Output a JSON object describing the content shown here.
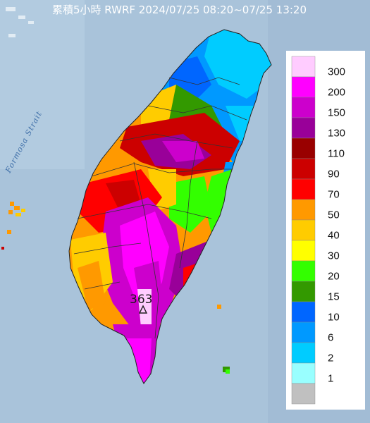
{
  "map": {
    "title": "累積5小時 RWRF 2024/07/25 08:20~07/25 13:20",
    "strait_label": "Formosa Strait",
    "peak_value": "363",
    "peak_marker": "triangle-marker",
    "sea_color": "#a9c3da",
    "land_base_color": "#7fa7c9"
  },
  "legend": {
    "items": [
      {
        "label": "300",
        "color": "#ffccff"
      },
      {
        "label": "200",
        "color": "#ff00ff"
      },
      {
        "label": "150",
        "color": "#cc00cc"
      },
      {
        "label": "130",
        "color": "#990099"
      },
      {
        "label": "110",
        "color": "#990000"
      },
      {
        "label": "90",
        "color": "#cc0000"
      },
      {
        "label": "70",
        "color": "#ff0000"
      },
      {
        "label": "50",
        "color": "#ff9900"
      },
      {
        "label": "40",
        "color": "#ffcc00"
      },
      {
        "label": "30",
        "color": "#ffff00"
      },
      {
        "label": "20",
        "color": "#33ff00"
      },
      {
        "label": "15",
        "color": "#339900"
      },
      {
        "label": "10",
        "color": "#0066ff"
      },
      {
        "label": "6",
        "color": "#0099ff"
      },
      {
        "label": "2",
        "color": "#00ccff"
      },
      {
        "label": "1",
        "color": "#99ffff"
      },
      {
        "label": "",
        "color": "#c0c0c0"
      }
    ]
  }
}
